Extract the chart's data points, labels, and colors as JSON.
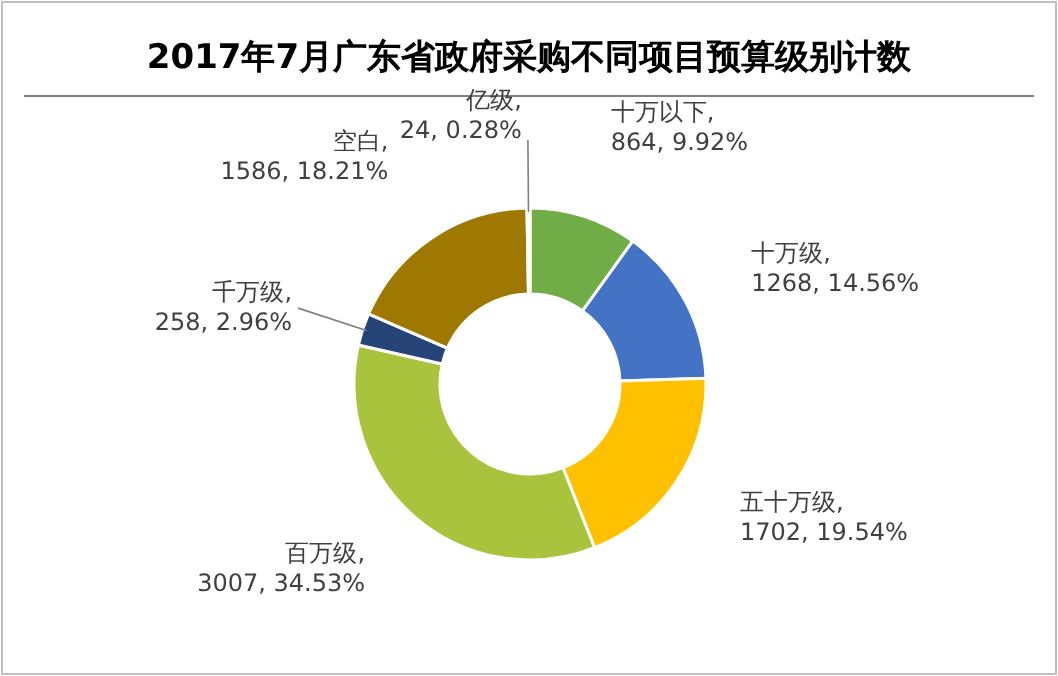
{
  "chart_data": {
    "type": "donut",
    "title": "2017年7月广东省政府采购不同项目预算级别计数",
    "categories": [
      "十万以下",
      "十万级",
      "五十万级",
      "百万级",
      "千万级",
      "空白",
      "亿级"
    ],
    "values": [
      864,
      1268,
      1702,
      3007,
      258,
      1586,
      24
    ],
    "value_labels": [
      ", 864, 9.92%",
      ", 1268, 14.56%",
      ", 1702, 19.54%",
      ", 3007, 34.53%",
      ", 258, 2.96%",
      ", 1586, 18.21%",
      ", 24, 0.28%"
    ],
    "colors": [
      "#70ad47",
      "#4472c4",
      "#ffc000",
      "#a9c43c",
      "#264478",
      "#9e7800",
      "#7f7f7f"
    ]
  }
}
